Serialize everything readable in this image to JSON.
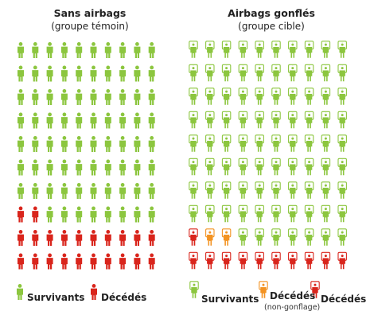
{
  "colors": {
    "survivor": "#8cc63f",
    "deceased": "#d9251c",
    "non_inflation": "#f39322",
    "badge_fill": "#ffffff"
  },
  "left_panel": {
    "title": "Sans airbags",
    "subtitle": "(groupe témoin)",
    "grid": {
      "rows": 10,
      "cols": 10
    },
    "badged": false,
    "deceased_cells": [
      [
        7,
        0
      ],
      [
        7,
        1
      ],
      [
        8,
        0
      ],
      [
        8,
        1
      ],
      [
        8,
        2
      ],
      [
        8,
        3
      ],
      [
        8,
        4
      ],
      [
        8,
        5
      ],
      [
        8,
        6
      ],
      [
        8,
        7
      ],
      [
        8,
        8
      ],
      [
        8,
        9
      ],
      [
        9,
        0
      ],
      [
        9,
        1
      ],
      [
        9,
        2
      ],
      [
        9,
        3
      ],
      [
        9,
        4
      ],
      [
        9,
        5
      ],
      [
        9,
        6
      ],
      [
        9,
        7
      ],
      [
        9,
        8
      ],
      [
        9,
        9
      ]
    ],
    "non_inflation_cells": []
  },
  "right_panel": {
    "title": "Airbags gonflés",
    "subtitle": "(groupe cible)",
    "grid": {
      "rows": 10,
      "cols": 10
    },
    "badged": true,
    "deceased_cells": [
      [
        8,
        0
      ],
      [
        9,
        0
      ],
      [
        9,
        1
      ],
      [
        9,
        2
      ],
      [
        9,
        3
      ],
      [
        9,
        4
      ],
      [
        9,
        5
      ],
      [
        9,
        6
      ],
      [
        9,
        7
      ],
      [
        9,
        8
      ],
      [
        9,
        9
      ]
    ],
    "non_inflation_cells": [
      [
        8,
        1
      ],
      [
        8,
        2
      ]
    ]
  },
  "legend_left": {
    "survivor_label": "Survivants",
    "deceased_label": "Décédés"
  },
  "legend_right": {
    "survivor_label": "Survivants",
    "non_inflation_label": "Décédés",
    "non_inflation_note": "(non-gonflage)",
    "deceased_label": "Décédés"
  }
}
